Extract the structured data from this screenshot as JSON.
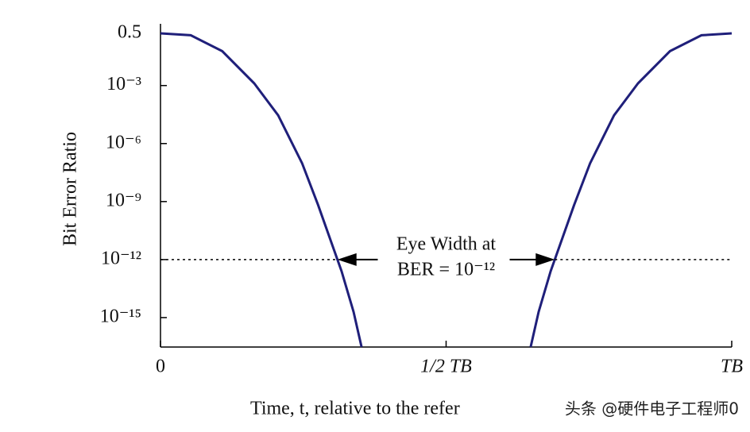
{
  "chart_data": {
    "type": "line",
    "y_label": "Bit Error Ratio",
    "x_label": "Time, t, relative to the refer",
    "watermark": "头条 @硬件电子工程师0",
    "log_scale_y": true,
    "grid": false,
    "series": [
      {
        "color": "#1f1f7a",
        "x": [
          0,
          0.053,
          0.108,
          0.164,
          0.206,
          0.248,
          0.276,
          0.304,
          0.317,
          0.338,
          0.352
        ],
        "values": [
          0.5,
          0.4,
          0.06,
          0.0013,
          2.9e-05,
          9.5e-08,
          6.6e-10,
          3e-12,
          2.5e-13,
          2e-15,
          3e-17
        ]
      },
      {
        "color": "#1f1f7a",
        "x": [
          0.648,
          0.662,
          0.683,
          0.696,
          0.724,
          0.752,
          0.794,
          0.836,
          0.892,
          0.947,
          1
        ],
        "values": [
          3e-17,
          2e-15,
          2.5e-13,
          3e-12,
          6.6e-10,
          9.5e-08,
          2.9e-05,
          0.0013,
          0.06,
          0.4,
          0.5
        ]
      }
    ],
    "reference_line": 1e-12,
    "annotation": [
      "Eye Width at",
      "BER = 10⁻¹²"
    ],
    "xlim": [
      0,
      1
    ],
    "xticks": [
      0,
      {
        "value": 0.5,
        "label": "1/2 TB"
      },
      {
        "value": 1,
        "label": "TB"
      }
    ],
    "ylim": [
      3e-17,
      0.5
    ],
    "yticks": [
      0.5,
      {
        "value": 0.001,
        "label": "10⁻³"
      },
      {
        "value": 1e-06,
        "label": "10⁻⁶"
      },
      {
        "value": 1e-09,
        "label": "10⁻⁹"
      },
      {
        "value": 1e-12,
        "label": "10⁻¹²"
      },
      {
        "value": 1e-15,
        "label": "10⁻¹⁵"
      }
    ]
  }
}
